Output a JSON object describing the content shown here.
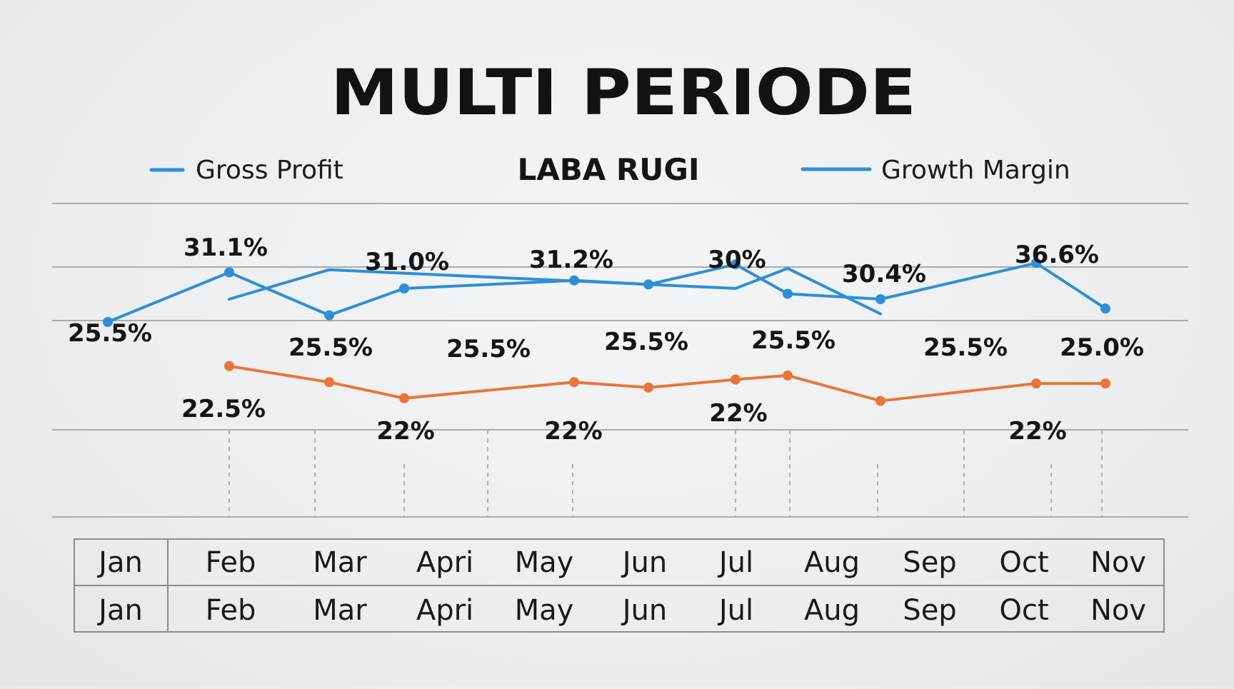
{
  "page": {
    "title": "MULTI PERIODE",
    "subtitle": "LABA RUGI"
  },
  "legend": [
    {
      "label": "Gross Profit",
      "color": "#2f8fd6"
    },
    {
      "label": "Growth Margin",
      "color": "#2f8fd6"
    }
  ],
  "colors": {
    "blue": "#2f8fd6",
    "orange": "#e8763a",
    "grid": "#a9abae",
    "table_border": "#8a8c8f"
  },
  "month_table": {
    "rows": [
      [
        "Jan",
        "Feb",
        "Mar",
        "Apri",
        "May",
        "Jun",
        "Jul",
        "Aug",
        "Sep",
        "Oct",
        "Nov"
      ],
      [
        "Jan",
        "Feb",
        "Mar",
        "Apri",
        "May",
        "Jun",
        "Jul",
        "Aug",
        "Sep",
        "Oct",
        "Nov"
      ]
    ]
  },
  "chart_data": {
    "type": "line",
    "title": "MULTI PERIODE",
    "subtitle": "LABA RUGI",
    "categories": [
      "Jan",
      "Feb",
      "Mar",
      "Apri",
      "May",
      "Jun",
      "Jul",
      "Aug",
      "Sep",
      "Oct",
      "Nov"
    ],
    "legend_position": "top",
    "grid": true,
    "series": [
      {
        "name": "Gross Profit",
        "color": "#2f8fd6",
        "values": [
          25.9,
          29.6,
          26.4,
          28.4,
          29.0,
          28.7,
          30.2,
          28.0,
          27.6,
          30.3,
          26.9
        ]
      },
      {
        "name": "Growth Margin",
        "color": "#2f8fd6",
        "values": [
          null,
          27.6,
          29.8,
          null,
          null,
          null,
          28.4,
          29.9,
          26.5,
          null,
          null
        ]
      },
      {
        "color": "#e8763a",
        "values": [
          null,
          22.6,
          21.4,
          20.2,
          21.4,
          21.0,
          21.6,
          21.9,
          20.0,
          21.3,
          21.3
        ]
      }
    ],
    "data_labels": [
      {
        "text": "31.1%",
        "category": "Feb"
      },
      {
        "text": "31.0%",
        "category": "Apri"
      },
      {
        "text": "31.2%",
        "category": "May"
      },
      {
        "text": "30%",
        "category": "Jul"
      },
      {
        "text": "30.4%",
        "category": "Sep"
      },
      {
        "text": "36.6%",
        "category": "Oct"
      },
      {
        "text": "25.5%",
        "category": "Jan"
      },
      {
        "text": "25.5%",
        "category": "Mar"
      },
      {
        "text": "25.5%",
        "category": "Apri"
      },
      {
        "text": "25.5%",
        "category": "Jun"
      },
      {
        "text": "25.5%",
        "category": "Aug"
      },
      {
        "text": "25.5%",
        "category": "Sep"
      },
      {
        "text": "25.0%",
        "category": "Nov"
      },
      {
        "text": "22.5%",
        "category": "Feb"
      },
      {
        "text": "22%",
        "category": "Apri"
      },
      {
        "text": "22%",
        "category": "May"
      },
      {
        "text": "22%",
        "category": "Jul"
      },
      {
        "text": "22%",
        "category": "Oct"
      }
    ]
  }
}
